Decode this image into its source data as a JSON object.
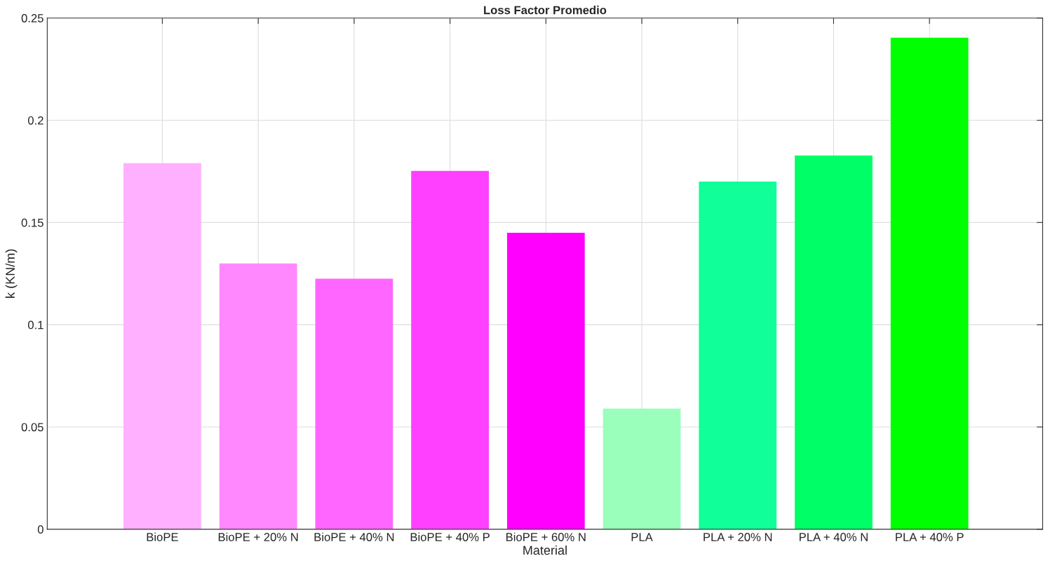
{
  "chart_data": {
    "type": "bar",
    "title": "Loss Factor Promedio",
    "xlabel": "Material",
    "ylabel": "k (KN/m)",
    "categories": [
      "BioPE",
      "BioPE + 20% N",
      "BioPE + 40% N",
      "BioPE + 40% P",
      "BioPE + 60% N",
      "PLA",
      "PLA + 20% N",
      "PLA + 40% N",
      "PLA + 40% P"
    ],
    "values": [
      0.179,
      0.13,
      0.1225,
      0.1752,
      0.145,
      0.059,
      0.17,
      0.1828,
      0.2404
    ],
    "colors": [
      "#ffb0ff",
      "#ff88ff",
      "#ff66ff",
      "#ff40ff",
      "#ff00ff",
      "#99ffbb",
      "#11ff99",
      "#00ff66",
      "#00ff00"
    ],
    "ylim": [
      0,
      0.25
    ],
    "yticks": [
      0,
      0.05,
      0.1,
      0.15,
      0.2,
      0.25
    ],
    "grid": true
  }
}
